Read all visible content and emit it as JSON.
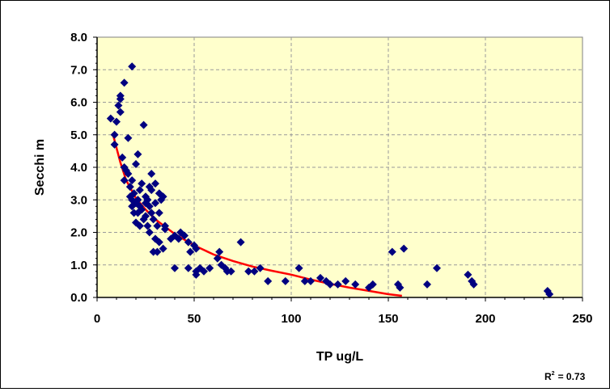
{
  "chart_data": {
    "type": "scatter",
    "xlabel": "TP ug/L",
    "ylabel": "Secchi m",
    "xlim": [
      0,
      250
    ],
    "ylim": [
      0,
      8
    ],
    "x_ticks": [
      "0",
      "50",
      "100",
      "150",
      "200",
      "250"
    ],
    "y_ticks": [
      "0.0",
      "1.0",
      "2.0",
      "3.0",
      "4.0",
      "5.0",
      "6.0",
      "7.0",
      "8.0"
    ],
    "grid": true,
    "plot_background": "#ffffcc",
    "point_color": "#000080",
    "trend_color": "#ff0000",
    "r_squared_label": "R",
    "r_squared_sup": "2",
    "r_squared_value": "= 0.73",
    "series": [
      {
        "marker": "diamond",
        "points": [
          [
            7,
            5.5
          ],
          [
            9,
            5.0
          ],
          [
            9,
            4.7
          ],
          [
            10,
            5.4
          ],
          [
            11,
            5.9
          ],
          [
            12,
            6.2
          ],
          [
            12,
            6.1
          ],
          [
            12,
            5.7
          ],
          [
            14,
            6.6
          ],
          [
            16,
            4.9
          ],
          [
            18,
            7.1
          ],
          [
            13,
            4.3
          ],
          [
            14,
            4.0
          ],
          [
            14,
            3.6
          ],
          [
            15,
            3.9
          ],
          [
            16,
            3.8
          ],
          [
            17,
            3.4
          ],
          [
            17,
            3.1
          ],
          [
            18,
            3.0
          ],
          [
            18,
            2.8
          ],
          [
            18,
            3.6
          ],
          [
            19,
            2.6
          ],
          [
            19,
            3.2
          ],
          [
            20,
            2.9
          ],
          [
            20,
            2.3
          ],
          [
            20,
            4.1
          ],
          [
            21,
            4.4
          ],
          [
            21,
            3.0
          ],
          [
            21,
            2.6
          ],
          [
            22,
            3.3
          ],
          [
            22,
            2.8
          ],
          [
            22,
            2.2
          ],
          [
            23,
            2.7
          ],
          [
            23,
            3.5
          ],
          [
            24,
            5.3
          ],
          [
            24,
            2.4
          ],
          [
            25,
            3.1
          ],
          [
            25,
            2.9
          ],
          [
            25,
            2.5
          ],
          [
            26,
            3.0
          ],
          [
            26,
            2.2
          ],
          [
            27,
            3.4
          ],
          [
            27,
            2.8
          ],
          [
            27,
            2.0
          ],
          [
            28,
            3.8
          ],
          [
            28,
            3.3
          ],
          [
            28,
            2.6
          ],
          [
            29,
            2.4
          ],
          [
            29,
            1.4
          ],
          [
            30,
            3.5
          ],
          [
            30,
            2.9
          ],
          [
            30,
            1.8
          ],
          [
            31,
            2.2
          ],
          [
            31,
            1.4
          ],
          [
            32,
            3.2
          ],
          [
            32,
            2.6
          ],
          [
            32,
            1.7
          ],
          [
            33,
            3.0
          ],
          [
            34,
            3.1
          ],
          [
            34,
            1.5
          ],
          [
            35,
            2.2
          ],
          [
            35,
            2.1
          ],
          [
            38,
            1.8
          ],
          [
            40,
            1.9
          ],
          [
            40,
            0.9
          ],
          [
            42,
            1.8
          ],
          [
            43,
            2.0
          ],
          [
            45,
            1.9
          ],
          [
            47,
            1.7
          ],
          [
            47,
            0.9
          ],
          [
            48,
            1.4
          ],
          [
            50,
            1.6
          ],
          [
            51,
            1.5
          ],
          [
            51,
            0.8
          ],
          [
            51,
            0.7
          ],
          [
            53,
            0.9
          ],
          [
            55,
            0.8
          ],
          [
            58,
            0.9
          ],
          [
            62,
            1.2
          ],
          [
            63,
            1.4
          ],
          [
            64,
            1.0
          ],
          [
            66,
            0.9
          ],
          [
            67,
            0.8
          ],
          [
            69,
            0.8
          ],
          [
            74,
            1.7
          ],
          [
            78,
            0.8
          ],
          [
            81,
            0.8
          ],
          [
            84,
            0.9
          ],
          [
            88,
            0.5
          ],
          [
            97,
            0.5
          ],
          [
            104,
            0.9
          ],
          [
            107,
            0.5
          ],
          [
            110,
            0.5
          ],
          [
            115,
            0.6
          ],
          [
            118,
            0.5
          ],
          [
            120,
            0.4
          ],
          [
            124,
            0.4
          ],
          [
            128,
            0.5
          ],
          [
            133,
            0.4
          ],
          [
            140,
            0.3
          ],
          [
            142,
            0.4
          ],
          [
            152,
            1.4
          ],
          [
            155,
            0.4
          ],
          [
            156,
            0.3
          ],
          [
            158,
            1.5
          ],
          [
            170,
            0.4
          ],
          [
            175,
            0.9
          ],
          [
            191,
            0.7
          ],
          [
            193,
            0.5
          ],
          [
            194,
            0.4
          ],
          [
            232,
            0.2
          ],
          [
            233,
            0.1
          ]
        ]
      }
    ],
    "trendline": {
      "type": "fit",
      "points": [
        [
          8,
          5.05
        ],
        [
          10,
          4.6
        ],
        [
          12,
          4.15
        ],
        [
          15,
          3.6
        ],
        [
          20,
          3.05
        ],
        [
          25,
          2.7
        ],
        [
          30,
          2.4
        ],
        [
          40,
          1.95
        ],
        [
          50,
          1.6
        ],
        [
          60,
          1.32
        ],
        [
          70,
          1.12
        ],
        [
          80,
          0.95
        ],
        [
          90,
          0.82
        ],
        [
          100,
          0.7
        ],
        [
          110,
          0.55
        ],
        [
          120,
          0.42
        ],
        [
          130,
          0.3
        ],
        [
          140,
          0.2
        ],
        [
          150,
          0.1
        ],
        [
          157,
          0.05
        ]
      ]
    }
  }
}
